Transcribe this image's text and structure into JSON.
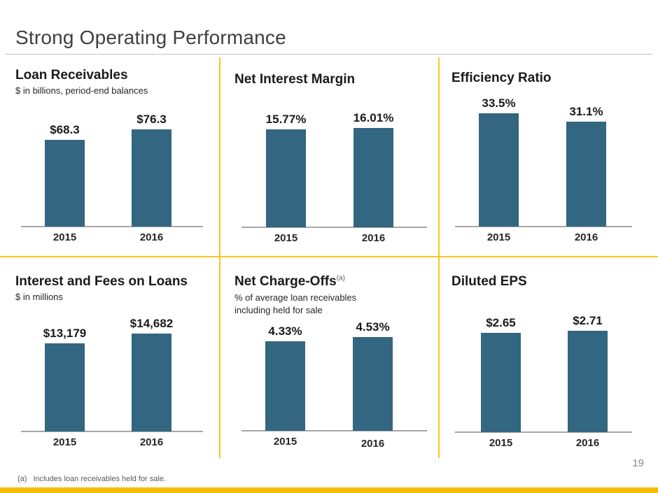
{
  "slide": {
    "title": "Strong Operating Performance",
    "page_number": "19",
    "footnote_marker": "(a)",
    "footnote_text": "Includes loan receivables held for sale."
  },
  "colors": {
    "bar": "#336680",
    "accent_line": "#FDC425",
    "accent_bar": "#F3BC00",
    "baseline": "#A6A6A6"
  },
  "chart_data": [
    {
      "type": "bar",
      "title": "Loan Receivables",
      "subtitle": "$ in billions, period-end balances",
      "categories": [
        "2015",
        "2016"
      ],
      "values": [
        68.3,
        76.3
      ],
      "labels": [
        "$68.3",
        "$76.3"
      ],
      "unit": "$ billions"
    },
    {
      "type": "bar",
      "title": "Net Interest Margin",
      "categories": [
        "2015",
        "2016"
      ],
      "values": [
        15.77,
        16.01
      ],
      "labels": [
        "15.77%",
        "16.01%"
      ],
      "unit": "%"
    },
    {
      "type": "bar",
      "title": "Efficiency Ratio",
      "categories": [
        "2015",
        "2016"
      ],
      "values": [
        33.5,
        31.1
      ],
      "labels": [
        "33.5%",
        "31.1%"
      ],
      "unit": "%"
    },
    {
      "type": "bar",
      "title": "Interest and Fees on Loans",
      "subtitle": "$ in millions",
      "categories": [
        "2015",
        "2016"
      ],
      "values": [
        13179,
        14682
      ],
      "labels": [
        "$13,179",
        "$14,682"
      ],
      "unit": "$ millions"
    },
    {
      "type": "bar",
      "title": "Net Charge-Offs",
      "title_superscript": "(a)",
      "subtitle": "% of average loan receivables",
      "subtitle2": "including held for sale",
      "categories": [
        "2015",
        "2016"
      ],
      "values": [
        4.33,
        4.53
      ],
      "labels": [
        "4.33%",
        "4.53%"
      ],
      "unit": "%"
    },
    {
      "type": "bar",
      "title": "Diluted EPS",
      "categories": [
        "2015",
        "2016"
      ],
      "values": [
        2.65,
        2.71
      ],
      "labels": [
        "$2.65",
        "$2.71"
      ],
      "unit": "$"
    }
  ]
}
